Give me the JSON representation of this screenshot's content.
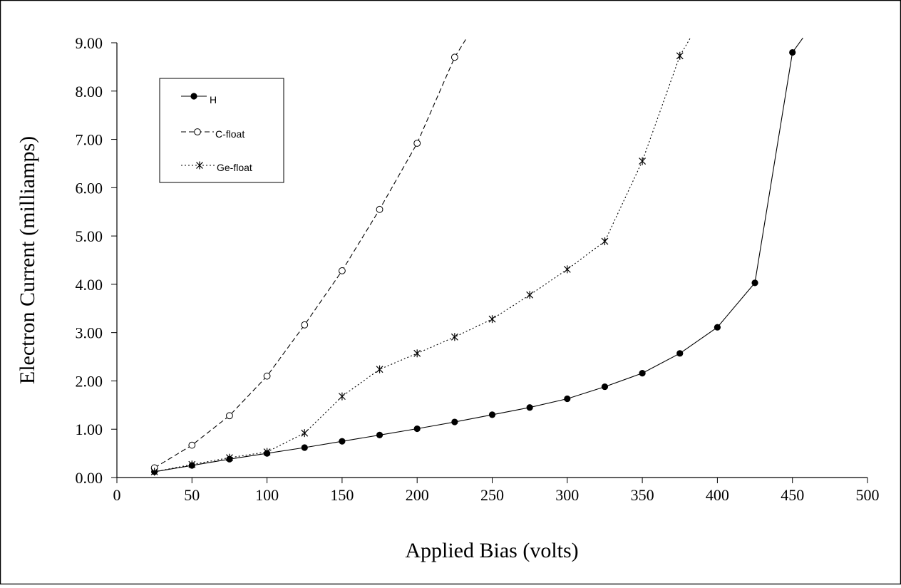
{
  "chart_data": {
    "type": "line",
    "title": "",
    "xlabel": "Applied Bias (volts)",
    "ylabel": "Electron Current (milliamps)",
    "xlim": [
      0,
      500
    ],
    "ylim": [
      0,
      9
    ],
    "x_ticks": [
      "0",
      "50",
      "100",
      "150",
      "200",
      "250",
      "300",
      "350",
      "400",
      "450",
      "500"
    ],
    "y_ticks": [
      "0.00",
      "1.00",
      "2.00",
      "3.00",
      "4.00",
      "5.00",
      "6.00",
      "7.00",
      "8.00",
      "9.00"
    ],
    "grid": false,
    "legend_position": "top-left",
    "series": [
      {
        "name": "H",
        "marker": "filled-circle",
        "line_style": "solid",
        "x": [
          25,
          50,
          75,
          100,
          125,
          150,
          175,
          200,
          225,
          250,
          275,
          300,
          325,
          350,
          375,
          400,
          425,
          450,
          457
        ],
        "y": [
          0.12,
          0.25,
          0.38,
          0.5,
          0.62,
          0.75,
          0.88,
          1.01,
          1.15,
          1.3,
          1.45,
          1.63,
          1.88,
          2.16,
          2.57,
          3.11,
          4.03,
          8.8,
          9.1
        ],
        "marked": [
          true,
          true,
          true,
          true,
          true,
          true,
          true,
          true,
          true,
          true,
          true,
          true,
          true,
          true,
          true,
          true,
          true,
          true,
          false
        ]
      },
      {
        "name": "C-float",
        "marker": "open-circle",
        "line_style": "dashed",
        "x": [
          25,
          50,
          75,
          100,
          125,
          150,
          175,
          200,
          225,
          233
        ],
        "y": [
          0.2,
          0.67,
          1.28,
          2.1,
          3.16,
          4.28,
          5.55,
          6.92,
          8.7,
          9.1
        ],
        "marked": [
          true,
          true,
          true,
          true,
          true,
          true,
          true,
          true,
          true,
          false
        ]
      },
      {
        "name": "Ge-float",
        "marker": "asterisk",
        "line_style": "dotted",
        "x": [
          25,
          50,
          75,
          100,
          125,
          150,
          175,
          200,
          225,
          250,
          275,
          300,
          325,
          350,
          375,
          382
        ],
        "y": [
          0.12,
          0.27,
          0.41,
          0.53,
          0.92,
          1.68,
          2.24,
          2.57,
          2.91,
          3.28,
          3.78,
          4.31,
          4.89,
          6.55,
          8.73,
          9.1
        ],
        "marked": [
          true,
          true,
          true,
          true,
          true,
          true,
          true,
          true,
          true,
          true,
          true,
          true,
          true,
          true,
          true,
          false
        ]
      }
    ]
  }
}
